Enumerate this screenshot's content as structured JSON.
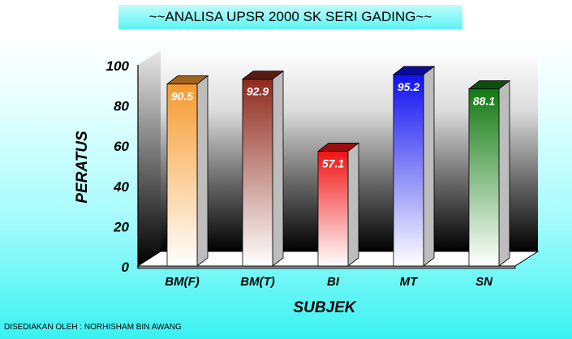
{
  "title": "~~ANALISA UPSR 2000 SK SERI GADING~~",
  "footer": "DISEDIAKAN OLEH : NORHISHAM BIN AWANG",
  "chart_data": {
    "type": "bar",
    "title": "~~ANALISA UPSR 2000 SK SERI GADING~~",
    "xlabel": "SUBJEK",
    "ylabel": "PERATUS",
    "categories": [
      "BM(F)",
      "BM(T)",
      "BI",
      "MT",
      "SN"
    ],
    "values": [
      90.5,
      92.9,
      57.1,
      95.2,
      88.1
    ],
    "value_labels": [
      "90.5",
      "92.9",
      "57.1",
      "95.2",
      "88.1"
    ],
    "yticks": [
      "0",
      "20",
      "40",
      "60",
      "80",
      "100"
    ],
    "ylim": [
      0,
      100
    ],
    "bar_colors": [
      "#f59a2e",
      "#8e2a1c",
      "#f01414",
      "#1010f0",
      "#127a12"
    ],
    "grid": false,
    "legend": "none",
    "style": "3d-column"
  }
}
